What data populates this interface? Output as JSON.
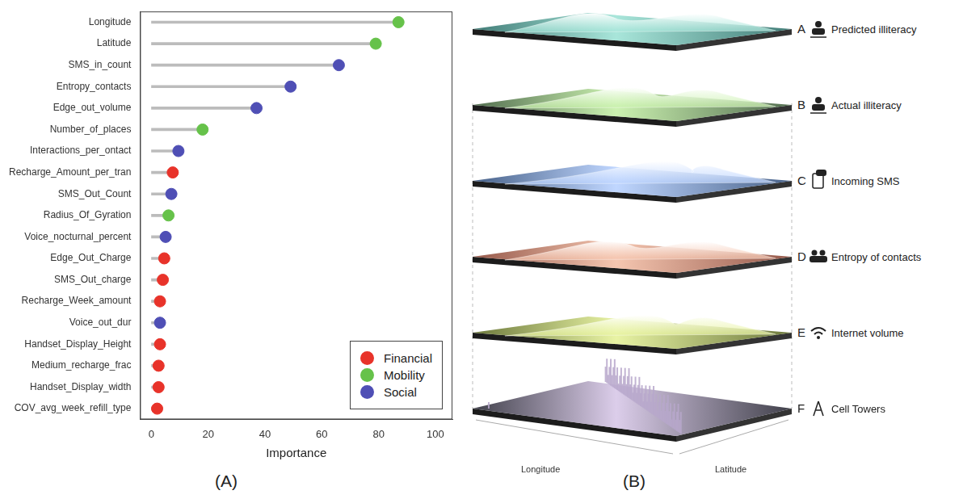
{
  "chart_data": {
    "type": "lollipop",
    "orientation": "horizontal",
    "categories": [
      "Longitude",
      "Latitude",
      "SMS_in_count",
      "Entropy_contacts",
      "Edge_out_volume",
      "Number_of_places",
      "Interactions_per_ontact",
      "Recharge_Amount_per_tran",
      "SMS_Out_Count",
      "Radius_Of_Gyration",
      "Voice_nocturnal_percent",
      "Edge_Out_Charge",
      "SMS_Out_charge",
      "Recharge_Week_amount",
      "Voice_out_dur",
      "Handset_Display_Height",
      "Medium_recharge_frac",
      "Handset_Display_width",
      "COV_avg_week_refill_type"
    ],
    "series": [
      {
        "name": "Financial",
        "color": "#e8332a",
        "values": [
          null,
          null,
          null,
          null,
          null,
          null,
          null,
          7.5,
          null,
          null,
          null,
          4.5,
          4,
          3,
          null,
          3,
          2.5,
          2.5,
          2
        ]
      },
      {
        "name": "Mobility",
        "color": "#66c24a",
        "values": [
          87,
          79,
          null,
          null,
          null,
          18,
          null,
          null,
          null,
          6,
          null,
          null,
          null,
          null,
          null,
          null,
          null,
          null,
          null
        ]
      },
      {
        "name": "Social",
        "color": "#4f4fb5",
        "values": [
          null,
          null,
          66,
          49,
          37,
          null,
          9.5,
          null,
          7,
          null,
          5,
          null,
          null,
          null,
          3,
          null,
          null,
          null,
          null
        ]
      }
    ],
    "marker": "circle",
    "x_label": "Importance",
    "xlim": [
      -4,
      106
    ],
    "xticks": [
      0,
      20,
      40,
      60,
      80,
      100
    ],
    "grid": false,
    "legend": "lower right"
  },
  "panel_labels": [
    "(A)",
    "(B)"
  ],
  "diagram": {
    "layers": [
      {
        "letter": "A",
        "label": "Predicted illiteracy"
      },
      {
        "letter": "B",
        "label": "Actual illiteracy"
      },
      {
        "letter": "C",
        "label": "Incoming SMS"
      },
      {
        "letter": "D",
        "label": "Entropy of contacts"
      },
      {
        "letter": "E",
        "label": "Internet volume"
      },
      {
        "letter": "F",
        "label": "Cell Towers"
      }
    ],
    "x_axis_label": "Longitude",
    "y_axis_label": "Latitude"
  }
}
